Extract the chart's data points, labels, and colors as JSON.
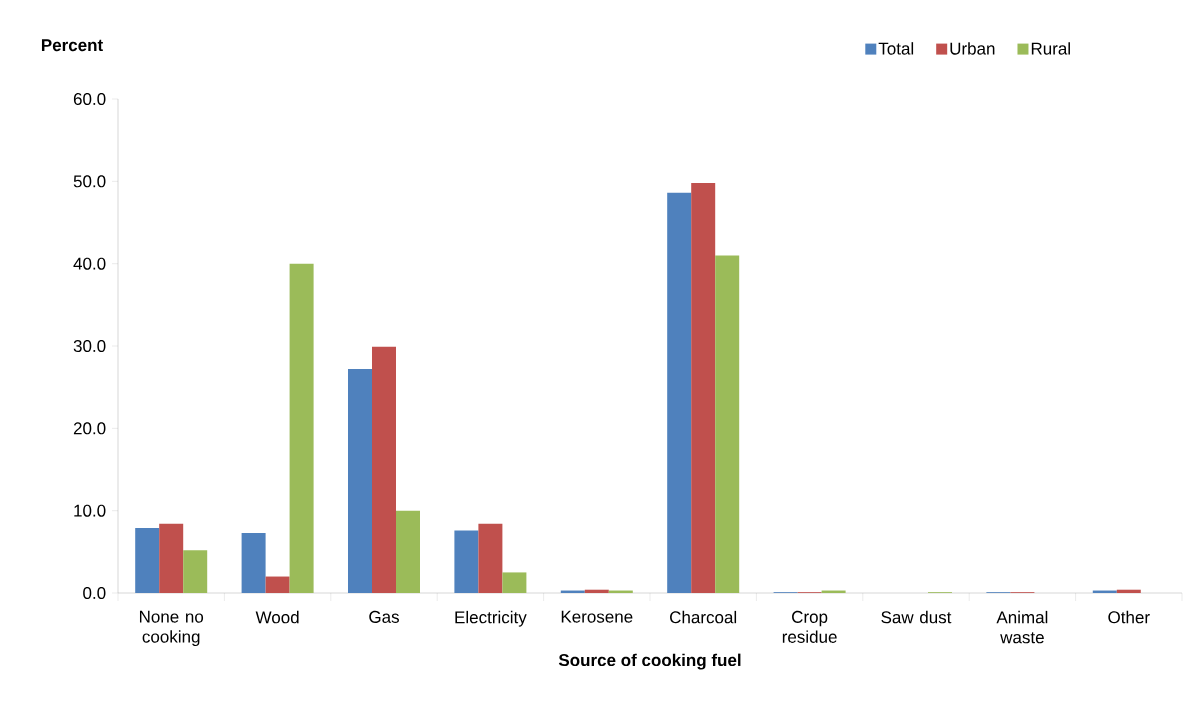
{
  "chart_data": {
    "type": "bar",
    "xlabel": "Source of cooking fuel",
    "ylabel": "Percent",
    "categories": [
      "None no cooking",
      "Wood",
      "Gas",
      "Electricity",
      "Kerosene",
      "Charcoal",
      "Crop residue",
      "Saw dust",
      "Animal waste",
      "Other"
    ],
    "series": [
      {
        "name": "Total",
        "color": "#4f81bd",
        "values": [
          7.9,
          7.3,
          27.2,
          7.6,
          0.3,
          48.6,
          0.1,
          0.0,
          0.1,
          0.3
        ]
      },
      {
        "name": "Urban",
        "color": "#c0504d",
        "values": [
          8.4,
          2.0,
          29.9,
          8.4,
          0.4,
          49.8,
          0.1,
          0.0,
          0.1,
          0.4
        ]
      },
      {
        "name": "Rural",
        "color": "#9bbb59",
        "values": [
          5.2,
          40.0,
          10.0,
          2.5,
          0.3,
          41.0,
          0.3,
          0.1,
          0.0,
          0.0
        ]
      }
    ],
    "ylim": [
      0,
      60
    ],
    "yticks": [
      {
        "value": 0,
        "label": "0.0"
      },
      {
        "value": 10,
        "label": "10.0"
      },
      {
        "value": 20,
        "label": "20.0"
      },
      {
        "value": 30,
        "label": "30.0"
      },
      {
        "value": 40,
        "label": "40.0"
      },
      {
        "value": 50,
        "label": "50.0"
      },
      {
        "value": 60,
        "label": "60.0"
      }
    ],
    "legend": "top right",
    "grid": false
  }
}
